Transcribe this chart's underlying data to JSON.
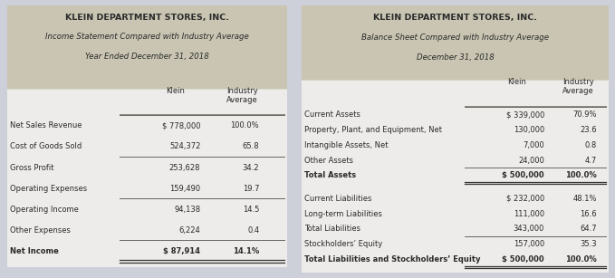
{
  "bg_color": "#cdd0d8",
  "panel_color": "#edecea",
  "header_bg": "#c9c5b2",
  "text_color": "#2a2a2a",
  "left_title1": "KLEIN DEPARTMENT STORES, INC.",
  "left_title2": "Income Statement Compared with Industry Average",
  "left_title3": "Year Ended December 31, 2018",
  "right_title1": "KLEIN DEPARTMENT STORES, INC.",
  "right_title2": "Balance Sheet Compared with Industry Average",
  "right_title3": "December 31, 2018",
  "left_rows": [
    {
      "label": "Net Sales Revenue",
      "klein": "$ 778,000",
      "ind": "100.0%",
      "bold": false,
      "line_above": true,
      "double_below": false,
      "line_below": false
    },
    {
      "label": "Cost of Goods Sold",
      "klein": "524,372",
      "ind": "65.8",
      "bold": false,
      "line_above": false,
      "double_below": false,
      "line_below": true
    },
    {
      "label": "Gross Profit",
      "klein": "253,628",
      "ind": "34.2",
      "bold": false,
      "line_above": false,
      "double_below": false,
      "line_below": false
    },
    {
      "label": "Operating Expenses",
      "klein": "159,490",
      "ind": "19.7",
      "bold": false,
      "line_above": false,
      "double_below": false,
      "line_below": true
    },
    {
      "label": "Operating Income",
      "klein": "94,138",
      "ind": "14.5",
      "bold": false,
      "line_above": false,
      "double_below": false,
      "line_below": false
    },
    {
      "label": "Other Expenses",
      "klein": "6,224",
      "ind": "0.4",
      "bold": false,
      "line_above": false,
      "double_below": false,
      "line_below": true
    },
    {
      "label": "Net Income",
      "klein": "$ 87,914",
      "ind": "14.1%",
      "bold": true,
      "line_above": false,
      "double_below": true,
      "line_below": false
    }
  ],
  "right_rows": [
    {
      "label": "Current Assets",
      "klein": "$ 339,000",
      "ind": "70.9%",
      "bold": false,
      "line_above": true,
      "double_below": false,
      "line_below": false,
      "spacer": false
    },
    {
      "label": "Property, Plant, and Equipment, Net",
      "klein": "130,000",
      "ind": "23.6",
      "bold": false,
      "line_above": false,
      "double_below": false,
      "line_below": false,
      "spacer": false
    },
    {
      "label": "Intangible Assets, Net",
      "klein": "7,000",
      "ind": "0.8",
      "bold": false,
      "line_above": false,
      "double_below": false,
      "line_below": false,
      "spacer": false
    },
    {
      "label": "Other Assets",
      "klein": "24,000",
      "ind": "4.7",
      "bold": false,
      "line_above": false,
      "double_below": false,
      "line_below": true,
      "spacer": false
    },
    {
      "label": "Total Assets",
      "klein": "$ 500,000",
      "ind": "100.0%",
      "bold": true,
      "line_above": false,
      "double_below": true,
      "line_below": false,
      "spacer": false
    },
    {
      "label": "",
      "klein": "",
      "ind": "",
      "bold": false,
      "line_above": false,
      "double_below": false,
      "line_below": false,
      "spacer": true
    },
    {
      "label": "Current Liabilities",
      "klein": "$ 232,000",
      "ind": "48.1%",
      "bold": false,
      "line_above": false,
      "double_below": false,
      "line_below": false,
      "spacer": false
    },
    {
      "label": "Long-term Liabilities",
      "klein": "111,000",
      "ind": "16.6",
      "bold": false,
      "line_above": false,
      "double_below": false,
      "line_below": false,
      "spacer": false
    },
    {
      "label": "Total Liabilities",
      "klein": "343,000",
      "ind": "64.7",
      "bold": false,
      "line_above": false,
      "double_below": false,
      "line_below": true,
      "spacer": false
    },
    {
      "label": "Stockholders’ Equity",
      "klein": "157,000",
      "ind": "35.3",
      "bold": false,
      "line_above": false,
      "double_below": false,
      "line_below": false,
      "spacer": false
    },
    {
      "label": "Total Liabilities and Stockholders’ Equity",
      "klein": "$ 500,000",
      "ind": "100.0%",
      "bold": true,
      "line_above": false,
      "double_below": true,
      "line_below": false,
      "spacer": false
    }
  ]
}
